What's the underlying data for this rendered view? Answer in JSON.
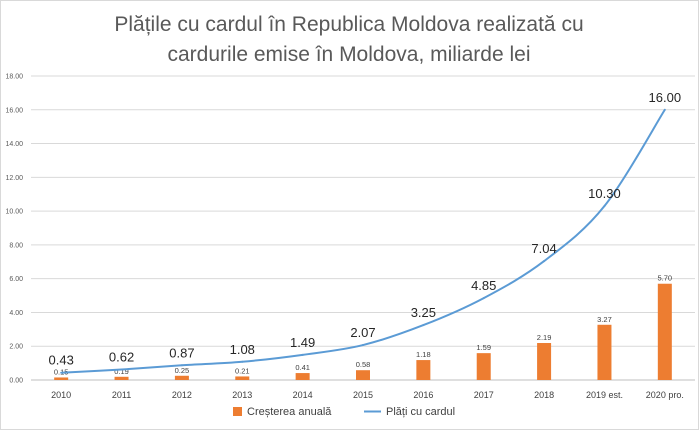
{
  "chart_data": {
    "type": "bar+line",
    "title_lines": [
      "Plățile cu cardul în Republica Moldova realizată cu",
      "cardurile emise în Moldova, miliarde lei"
    ],
    "categories": [
      "2010",
      "2011",
      "2012",
      "2013",
      "2014",
      "2015",
      "2016",
      "2017",
      "2018",
      "2019 est.",
      "2020 pro."
    ],
    "series": [
      {
        "name": "Creșterea anuală",
        "type": "bar",
        "color": "#ed7d31",
        "values": [
          0.15,
          0.19,
          0.25,
          0.21,
          0.41,
          0.58,
          1.18,
          1.59,
          2.19,
          3.27,
          5.7
        ],
        "labels": [
          "0.15",
          "0.19",
          "0.25",
          "0.21",
          "0.41",
          "0.58",
          "1.18",
          "1.59",
          "2.19",
          "3.27",
          "5.70"
        ]
      },
      {
        "name": "Plăți cu cardul",
        "type": "line",
        "color": "#5b9bd5",
        "values": [
          0.43,
          0.62,
          0.87,
          1.08,
          1.49,
          2.07,
          3.25,
          4.85,
          7.04,
          10.3,
          16.0
        ],
        "labels": [
          "0.43",
          "0.62",
          "0.87",
          "1.08",
          "1.49",
          "2.07",
          "3.25",
          "4.85",
          "7.04",
          "10.30",
          "16.00"
        ]
      }
    ],
    "y_ticks": [
      "0.00",
      "2.00",
      "4.00",
      "6.00",
      "8.00",
      "10.00",
      "12.00",
      "14.00",
      "16.00",
      "18.00"
    ],
    "ylim": [
      0,
      18
    ],
    "gridlines": true,
    "legend_position": "bottom"
  }
}
